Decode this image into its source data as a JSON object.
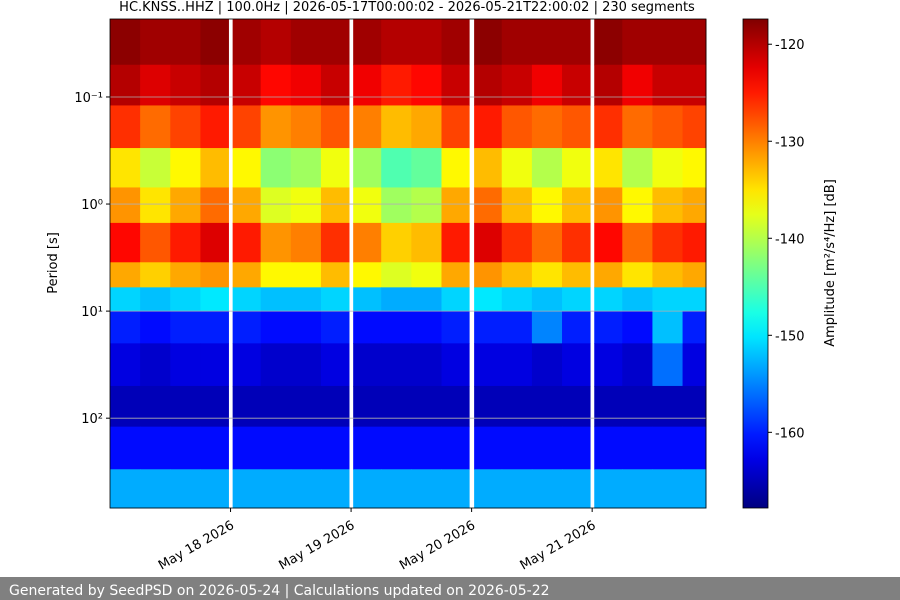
{
  "chart_data": {
    "type": "heatmap",
    "title": "HC.KNSS..HHZ | 100.0Hz | 2026-05-17T00:00:02 - 2026-05-21T22:00:02 | 230 segments",
    "y_label": "Period [s]",
    "colorbar_label": "Amplitude [m²/s⁴/Hz] [dB]",
    "footer": "Generated by SeedPSD on 2026-05-24 | Calculations updated on 2026-05-22",
    "colormap": "jet",
    "grid": true,
    "y_log": true,
    "y_inverted": true,
    "xlim": [
      "2026-05-17T00:00",
      "2026-05-21T22:40"
    ],
    "xticks": [
      {
        "value": "2026-05-18T00:00",
        "label": "May 18 2026"
      },
      {
        "value": "2026-05-19T00:00",
        "label": "May 19 2026"
      },
      {
        "value": "2026-05-20T00:00",
        "label": "May 20 2026"
      },
      {
        "value": "2026-05-21T00:00",
        "label": "May 21 2026"
      }
    ],
    "ylim": [
      0.0187,
      690
    ],
    "yticks": [
      {
        "value": 0.1,
        "label": "10⁻¹"
      },
      {
        "value": 1,
        "label": "10⁰"
      },
      {
        "value": 10,
        "label": "10¹"
      },
      {
        "value": 100,
        "label": "10²"
      }
    ],
    "clim": [
      -167.8,
      -117.4
    ],
    "cticks": [
      -120,
      -130,
      -140,
      -150,
      -160
    ],
    "x_edges": [
      "2026-05-17T00:00",
      "2026-05-17T06:00",
      "2026-05-17T12:00",
      "2026-05-17T18:00",
      "2026-05-17T23:35",
      "2026-05-18T00:25",
      "2026-05-18T06:00",
      "2026-05-18T12:00",
      "2026-05-18T18:00",
      "2026-05-18T23:35",
      "2026-05-19T00:25",
      "2026-05-19T06:00",
      "2026-05-19T12:00",
      "2026-05-19T18:00",
      "2026-05-19T23:30",
      "2026-05-20T00:30",
      "2026-05-20T06:00",
      "2026-05-20T12:00",
      "2026-05-20T18:00",
      "2026-05-20T23:35",
      "2026-05-21T00:25",
      "2026-05-21T06:00",
      "2026-05-21T12:00",
      "2026-05-21T18:00",
      "2026-05-21T22:40"
    ],
    "y_edges": [
      0.0187,
      0.05,
      0.12,
      0.3,
      0.7,
      1.5,
      3.5,
      6,
      10,
      20,
      50,
      120,
      300,
      690
    ],
    "values": [
      [
        -118,
        -119,
        -119,
        -118,
        null,
        -119,
        -120,
        -119,
        -119,
        null,
        -119,
        -120,
        -120,
        -119,
        null,
        -118,
        -119,
        -119,
        -119,
        null,
        -118,
        -119,
        -119,
        -119
      ],
      [
        -120,
        -122,
        -121,
        -120,
        null,
        -121,
        -124,
        -123,
        -121,
        null,
        -123,
        -125,
        -124,
        -121,
        null,
        -120,
        -121,
        -123,
        -121,
        null,
        -120,
        -123,
        -121,
        -121
      ],
      [
        -126,
        -129,
        -127,
        -125,
        null,
        -127,
        -131,
        -130,
        -128,
        null,
        -130,
        -133,
        -132,
        -127,
        null,
        -125,
        -128,
        -129,
        -128,
        null,
        -126,
        -129,
        -128,
        -127
      ],
      [
        -135,
        -139,
        -136,
        -133,
        null,
        -136,
        -142,
        -141,
        -137,
        null,
        -141,
        -145,
        -144,
        -136,
        null,
        -133,
        -137,
        -140,
        -137,
        null,
        -135,
        -140,
        -137,
        -136
      ],
      [
        -131,
        -135,
        -132,
        -129,
        null,
        -132,
        -138,
        -137,
        -133,
        null,
        -137,
        -141,
        -140,
        -132,
        null,
        -129,
        -133,
        -136,
        -133,
        null,
        -131,
        -136,
        -133,
        -132
      ],
      [
        -124,
        -128,
        -125,
        -122,
        null,
        -125,
        -131,
        -130,
        -126,
        null,
        -130,
        -134,
        -133,
        -125,
        null,
        -122,
        -126,
        -129,
        -126,
        null,
        -124,
        -129,
        -126,
        -125
      ],
      [
        -132,
        -134,
        -132,
        -131,
        null,
        -132,
        -136,
        -136,
        -133,
        null,
        -136,
        -138,
        -137,
        -132,
        null,
        -131,
        -133,
        -135,
        -133,
        null,
        -132,
        -135,
        -133,
        -132
      ],
      [
        -151,
        -152,
        -151,
        -150,
        null,
        -151,
        -152,
        -152,
        -151,
        null,
        -152,
        -153,
        -153,
        -151,
        null,
        -150,
        -151,
        -152,
        -151,
        null,
        -151,
        -152,
        -151,
        -151
      ],
      [
        -160,
        -161,
        -160,
        -160,
        null,
        -160,
        -161,
        -161,
        -160,
        null,
        -161,
        -161,
        -161,
        -160,
        null,
        -160,
        -160,
        -155,
        -160,
        null,
        -160,
        -161,
        -152,
        -160
      ],
      [
        -163,
        -164,
        -163,
        -163,
        null,
        -163,
        -164,
        -164,
        -163,
        null,
        -164,
        -164,
        -164,
        -163,
        null,
        -163,
        -163,
        -164,
        -163,
        null,
        -163,
        -164,
        -156,
        -163
      ],
      [
        -165,
        -165,
        -165,
        -165,
        null,
        -165,
        -165,
        -165,
        -165,
        null,
        -165,
        -165,
        -165,
        -165,
        null,
        -165,
        -165,
        -165,
        -165,
        null,
        -165,
        -165,
        -165,
        -165
      ],
      [
        -161,
        -161,
        -161,
        -161,
        null,
        -161,
        -161,
        -161,
        -161,
        null,
        -161,
        -161,
        -161,
        -161,
        null,
        -161,
        -161,
        -161,
        -161,
        null,
        -161,
        -161,
        -161,
        -161
      ],
      [
        -153,
        -153,
        -153,
        -153,
        null,
        -153,
        -153,
        -153,
        -153,
        null,
        -153,
        -153,
        -153,
        -153,
        null,
        -153,
        -153,
        -153,
        -153,
        null,
        -153,
        -153,
        -153,
        -153
      ]
    ]
  }
}
